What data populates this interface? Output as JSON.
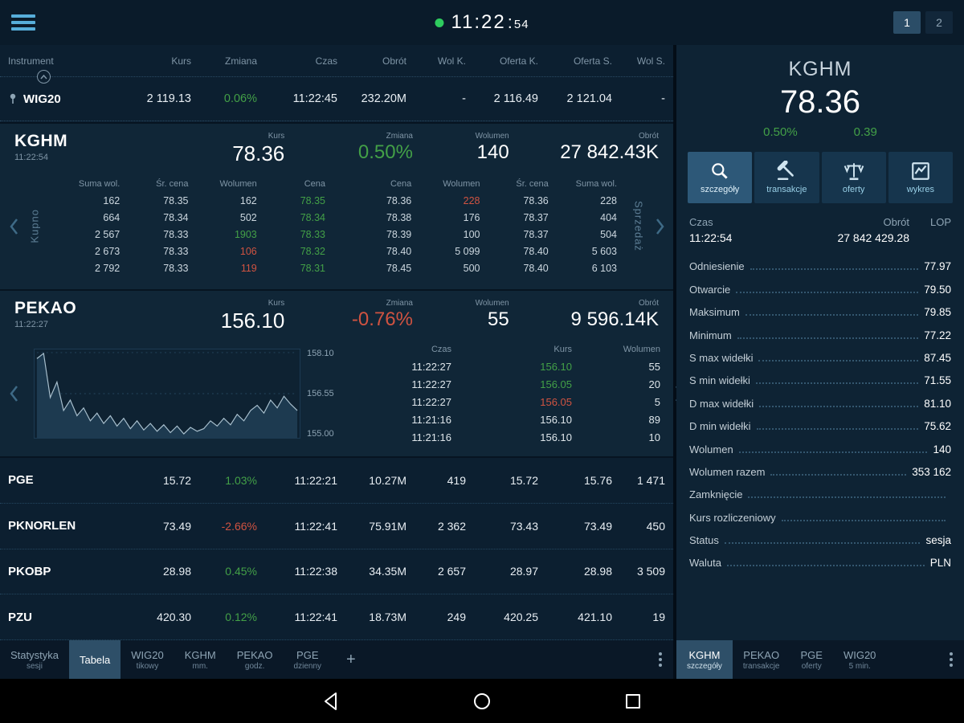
{
  "topbar": {
    "time": "11:22",
    "seconds": "54",
    "pages": [
      "1",
      "2"
    ]
  },
  "watchlist": {
    "columns": [
      "Instrument",
      "Kurs",
      "Zmiana",
      "Czas",
      "Obrót",
      "Wol K.",
      "Oferta K.",
      "Oferta S.",
      "Wol S."
    ],
    "wig20": {
      "instrument": "WIG20",
      "kurs": "2 119.13",
      "zmiana": "0.06%",
      "czas": "11:22:45",
      "obrot": "232.20M",
      "wol_k": "-",
      "oferta_k": "2 116.49",
      "oferta_s": "2 121.04",
      "wol_s": "-"
    }
  },
  "kghm": {
    "name": "KGHM",
    "time": "11:22:54",
    "labels": {
      "kurs": "Kurs",
      "zmiana": "Zmiana",
      "wolumen": "Wolumen",
      "obrot": "Obrót"
    },
    "kurs": "78.36",
    "zmiana": "0.50%",
    "wolumen": "140",
    "obrot": "27 842.43K",
    "buy_label": "Kupno",
    "sell_label": "Sprzedaż",
    "bid_headers": [
      "Suma wol.",
      "Śr. cena",
      "Wolumen",
      "Cena"
    ],
    "ask_headers": [
      "Cena",
      "Wolumen",
      "Śr. cena",
      "Suma wol."
    ],
    "bids": [
      {
        "sum": "162",
        "avg": "78.35",
        "vol": "162",
        "price": "78.35"
      },
      {
        "sum": "664",
        "avg": "78.34",
        "vol": "502",
        "price": "78.34"
      },
      {
        "sum": "2 567",
        "avg": "78.33",
        "vol": "1903",
        "price": "78.33"
      },
      {
        "sum": "2 673",
        "avg": "78.33",
        "vol": "106",
        "price": "78.32"
      },
      {
        "sum": "2 792",
        "avg": "78.33",
        "vol": "119",
        "price": "78.31"
      }
    ],
    "asks": [
      {
        "price": "78.36",
        "vol": "228",
        "avg": "78.36",
        "sum": "228"
      },
      {
        "price": "78.38",
        "vol": "176",
        "avg": "78.37",
        "sum": "404"
      },
      {
        "price": "78.39",
        "vol": "100",
        "avg": "78.37",
        "sum": "504"
      },
      {
        "price": "78.40",
        "vol": "5 099",
        "avg": "78.40",
        "sum": "5 603"
      },
      {
        "price": "78.45",
        "vol": "500",
        "avg": "78.40",
        "sum": "6 103"
      }
    ]
  },
  "pekao": {
    "name": "PEKAO",
    "time": "11:22:27",
    "kurs": "156.10",
    "zmiana": "-0.76%",
    "wolumen": "55",
    "obrot": "9 596.14K",
    "axis": [
      "158.10",
      "156.55",
      "155.00"
    ],
    "tx_headers": [
      "Czas",
      "Kurs",
      "Wolumen"
    ],
    "transactions": [
      {
        "czas": "11:22:27",
        "kurs": "156.10",
        "wol": "55"
      },
      {
        "czas": "11:22:27",
        "kurs": "156.05",
        "wol": "20"
      },
      {
        "czas": "11:22:27",
        "kurs": "156.05",
        "wol": "5"
      },
      {
        "czas": "11:21:16",
        "kurs": "156.10",
        "wol": "89"
      },
      {
        "czas": "11:21:16",
        "kurs": "156.10",
        "wol": "10"
      }
    ],
    "chart": {
      "type": "area",
      "range": [
        155.0,
        158.1
      ],
      "points": [
        157.9,
        158.1,
        156.4,
        157.0,
        155.9,
        156.3,
        155.7,
        156.0,
        155.5,
        155.8,
        155.4,
        155.7,
        155.3,
        155.6,
        155.2,
        155.5,
        155.15,
        155.4,
        155.1,
        155.35,
        155.05,
        155.3,
        155.0,
        155.25,
        155.1,
        155.2,
        155.5,
        155.3,
        155.6,
        155.35,
        155.75,
        155.5,
        155.9,
        156.1,
        155.8,
        156.3,
        156.0,
        156.45,
        156.15,
        155.9
      ]
    }
  },
  "quotes": [
    {
      "instrument": "PGE",
      "kurs": "15.72",
      "zmiana": "1.03%",
      "czas": "11:22:21",
      "obrot": "10.27M",
      "wol_k": "419",
      "oferta_k": "15.72",
      "oferta_s": "15.76",
      "wol_s": "1 471"
    },
    {
      "instrument": "PKNORLEN",
      "kurs": "73.49",
      "zmiana": "-2.66%",
      "czas": "11:22:41",
      "obrot": "75.91M",
      "wol_k": "2 362",
      "oferta_k": "73.43",
      "oferta_s": "73.49",
      "wol_s": "450"
    },
    {
      "instrument": "PKOBP",
      "kurs": "28.98",
      "zmiana": "0.45%",
      "czas": "11:22:38",
      "obrot": "34.35M",
      "wol_k": "2 657",
      "oferta_k": "28.97",
      "oferta_s": "28.98",
      "wol_s": "3 509"
    },
    {
      "instrument": "PZU",
      "kurs": "420.30",
      "zmiana": "0.12%",
      "czas": "11:22:41",
      "obrot": "18.73M",
      "wol_k": "249",
      "oferta_k": "420.25",
      "oferta_s": "421.10",
      "wol_s": "19"
    }
  ],
  "left_tabs": [
    {
      "label": "Statystyka",
      "sub": "sesji"
    },
    {
      "label": "Tabela",
      "sub": ""
    },
    {
      "label": "WIG20",
      "sub": "tikowy"
    },
    {
      "label": "KGHM",
      "sub": "mm."
    },
    {
      "label": "PEKAO",
      "sub": "godz."
    },
    {
      "label": "PGE",
      "sub": "dzienny"
    },
    {
      "label": "+",
      "sub": ""
    }
  ],
  "panel": {
    "name": "KGHM",
    "price": "78.36",
    "change_pct": "0.50%",
    "change_abs": "0.39",
    "buttons": [
      {
        "label": "szczegóły"
      },
      {
        "label": "transakcje"
      },
      {
        "label": "oferty"
      },
      {
        "label": "wykres"
      }
    ],
    "stats": {
      "czas_label": "Czas",
      "obrot_label": "Obrót",
      "lop_label": "LOP",
      "czas": "11:22:54",
      "obrot": "27 842 429.28",
      "lop": ""
    },
    "details": [
      {
        "label": "Odniesienie",
        "value": "77.97"
      },
      {
        "label": "Otwarcie",
        "value": "79.50"
      },
      {
        "label": "Maksimum",
        "value": "79.85"
      },
      {
        "label": "Minimum",
        "value": "77.22"
      },
      {
        "label": "S max widełki",
        "value": "87.45"
      },
      {
        "label": "S min widełki",
        "value": "71.55"
      },
      {
        "label": "D max widełki",
        "value": "81.10"
      },
      {
        "label": "D min widełki",
        "value": "75.62"
      },
      {
        "label": "Wolumen",
        "value": "140"
      },
      {
        "label": "Wolumen razem",
        "value": "353 162"
      },
      {
        "label": "Zamknięcie",
        "value": ""
      },
      {
        "label": "Kurs rozliczeniowy",
        "value": ""
      },
      {
        "label": "Status",
        "value": "sesja"
      },
      {
        "label": "Waluta",
        "value": "PLN"
      }
    ],
    "tabs": [
      {
        "label": "KGHM",
        "sub": "szczegóły"
      },
      {
        "label": "PEKAO",
        "sub": "transakcje"
      },
      {
        "label": "PGE",
        "sub": "oferty"
      },
      {
        "label": "WIG20",
        "sub": "5 min."
      }
    ]
  },
  "colors": {
    "green": "#43a047",
    "red": "#d05341",
    "accent": "#57aeda",
    "panel_bg": "#0e2334"
  }
}
